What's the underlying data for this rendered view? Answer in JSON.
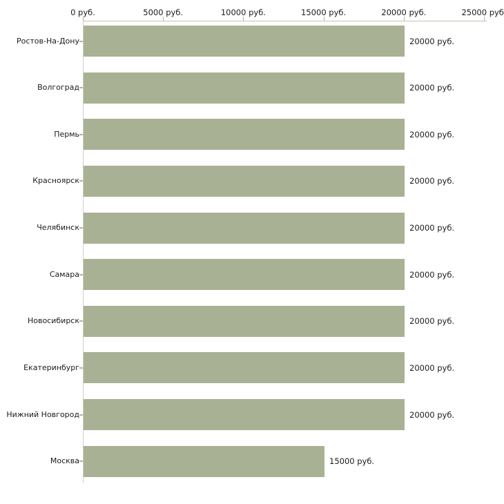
{
  "chart_data": {
    "type": "bar",
    "orientation": "horizontal",
    "title": "",
    "xlabel": "",
    "ylabel": "",
    "categories": [
      "Ростов-На-Дону",
      "Волгоград",
      "Пермь",
      "Красноярск",
      "Челябинск",
      "Самара",
      "Новосибирск",
      "Екатеринбург",
      "Нижний Новгород",
      "Москва"
    ],
    "values": [
      20000,
      20000,
      20000,
      20000,
      20000,
      20000,
      20000,
      20000,
      20000,
      15000
    ],
    "value_labels": [
      "20000 руб.",
      "20000 руб.",
      "20000 руб.",
      "20000 руб.",
      "20000 руб.",
      "20000 руб.",
      "20000 руб.",
      "20000 руб.",
      "20000 руб.",
      "15000 руб."
    ],
    "x_ticks": {
      "values": [
        0,
        5000,
        10000,
        15000,
        20000,
        25000
      ],
      "labels": [
        "0 руб.",
        "5000 руб.",
        "10000 руб.",
        "15000 руб.",
        "20000 руб.",
        "25000 руб."
      ]
    },
    "xlim": [
      0,
      25000
    ],
    "unit": "руб.",
    "legend": "none",
    "grid": "off",
    "colors": {
      "bar": "#a9b194",
      "tick": "#b4b78f",
      "axis_top": "#c2c2ae",
      "axis_left": "#cdcdcd",
      "text": "#1a1a1a",
      "background": "#ffffff"
    }
  }
}
